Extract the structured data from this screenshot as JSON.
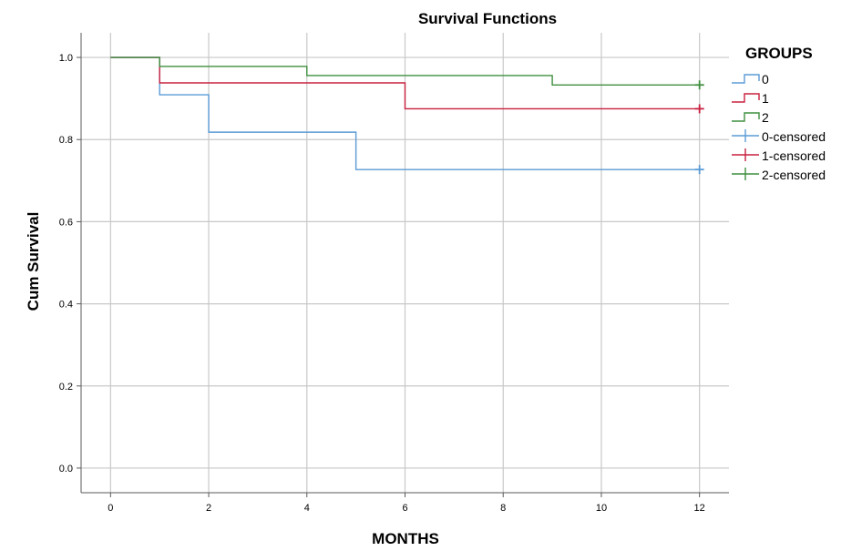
{
  "chart_data": {
    "type": "line",
    "title": "Survival Functions",
    "xlabel": "MONTHS",
    "ylabel": "Cum Survival",
    "xlim": [
      -0.6,
      12.6
    ],
    "ylim": [
      -0.06,
      1.06
    ],
    "x_ticks": [
      0,
      2,
      4,
      6,
      8,
      10,
      12
    ],
    "y_ticks": [
      0.0,
      0.2,
      0.4,
      0.6,
      0.8,
      1.0
    ],
    "x_tick_labels": [
      "0",
      "2",
      "4",
      "6",
      "8",
      "10",
      "12"
    ],
    "y_tick_labels": [
      "0.0",
      "0.2",
      "0.4",
      "0.6",
      "0.8",
      "1.0"
    ],
    "grid": true,
    "legend": {
      "title": "GROUPS",
      "position": "right"
    },
    "series": [
      {
        "name": "0",
        "color": "#5b9bd5",
        "step": true,
        "points": [
          [
            0,
            1.0
          ],
          [
            1,
            0.909
          ],
          [
            2,
            0.818
          ],
          [
            5,
            0.727
          ],
          [
            12,
            0.727
          ]
        ],
        "censored_name": "0-censored",
        "censored": [
          [
            12,
            0.727
          ]
        ]
      },
      {
        "name": "1",
        "color": "#c8203f",
        "step": true,
        "points": [
          [
            0,
            1.0
          ],
          [
            1,
            0.938
          ],
          [
            6,
            0.875
          ],
          [
            12,
            0.875
          ]
        ],
        "censored_name": "1-censored",
        "censored": [
          [
            12,
            0.875
          ]
        ]
      },
      {
        "name": "2",
        "color": "#3f8f3f",
        "step": true,
        "points": [
          [
            0,
            1.0
          ],
          [
            1,
            0.978
          ],
          [
            4,
            0.956
          ],
          [
            9,
            0.933
          ],
          [
            12,
            0.933
          ]
        ],
        "censored_name": "2-censored",
        "censored": [
          [
            12,
            0.933
          ]
        ]
      }
    ]
  }
}
